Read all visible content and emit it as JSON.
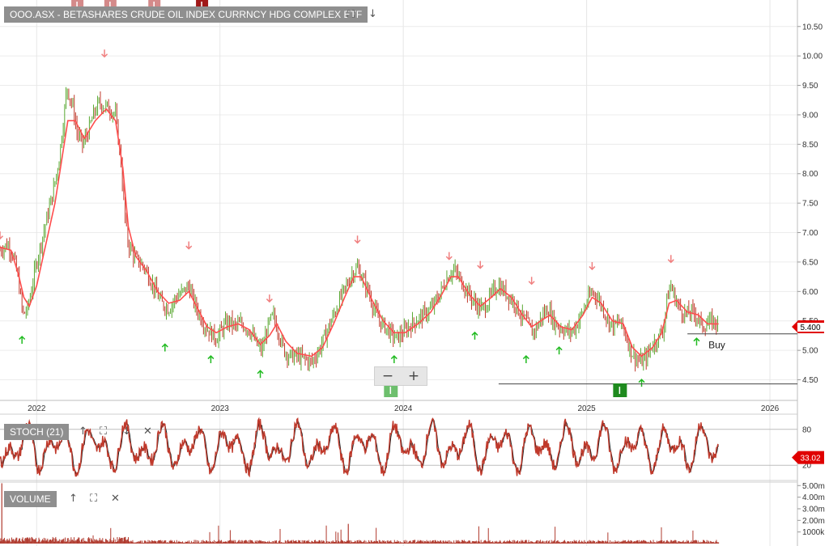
{
  "title": "OOO.ASX - BETASHARES CRUDE OIL INDEX CURRNCY HDG COMPLEX ETF",
  "colors": {
    "up": "#5aa832",
    "down": "#c0392b",
    "ma": "#ff4d4d",
    "stoch_fast": "#c0392b",
    "stoch_slow": "#222222",
    "sell_arrow": "#f08080",
    "buy_arrow": "#22bb22",
    "volume": "#b03a2e",
    "price_tag": "#e00000",
    "event_marker": "#c04040",
    "div_marker": "#6dbf6d",
    "div_marker_dark": "#1e8a1e"
  },
  "icons": {
    "expand": "expand-icon",
    "down": "arrow-down-icon",
    "up": "arrow-up-icon",
    "close": "close-icon"
  },
  "annotations": {
    "buy_label": "Buy"
  },
  "price_tag": "5.400",
  "stoch_tag": "33.02",
  "zoom": {
    "minus": "−",
    "plus": "+"
  },
  "chart_data": [
    {
      "type": "line",
      "name": "price",
      "x_ticks": [
        "2022",
        "2023",
        "2024",
        "2025",
        "2026"
      ],
      "y_ticks": [
        4.5,
        5.0,
        5.5,
        6.0,
        6.5,
        7.0,
        7.5,
        8.0,
        8.5,
        9.0,
        9.5,
        10.0,
        10.5
      ],
      "y_tick_labels": [
        "4.50",
        "5.00",
        "5.50",
        "6.00",
        "6.50",
        "7.00",
        "7.50",
        "8.00",
        "8.50",
        "9.00",
        "9.50",
        "10.00",
        "10.50"
      ],
      "ylim": [
        4.15,
        10.95
      ],
      "xlim": [
        2021.8,
        2026.15
      ],
      "grid": true,
      "series": [
        {
          "values": [
            [
              2021.8,
              6.7
            ],
            [
              2021.84,
              6.8
            ],
            [
              2021.87,
              6.65
            ],
            [
              2021.9,
              6.2
            ],
            [
              2021.925,
              5.6
            ],
            [
              2021.95,
              5.7
            ],
            [
              2021.97,
              6.0
            ],
            [
              2022.0,
              6.5
            ],
            [
              2022.03,
              6.9
            ],
            [
              2022.06,
              7.3
            ],
            [
              2022.09,
              7.7
            ],
            [
              2022.12,
              8.2
            ],
            [
              2022.15,
              9.0
            ],
            [
              2022.165,
              9.5
            ],
            [
              2022.18,
              9.3
            ],
            [
              2022.2,
              9.1
            ],
            [
              2022.22,
              8.7
            ],
            [
              2022.25,
              8.5
            ],
            [
              2022.28,
              8.7
            ],
            [
              2022.31,
              9.0
            ],
            [
              2022.34,
              9.2
            ],
            [
              2022.37,
              9.15
            ],
            [
              2022.4,
              9.1
            ],
            [
              2022.43,
              9.0
            ],
            [
              2022.46,
              8.2
            ],
            [
              2022.48,
              7.3
            ],
            [
              2022.5,
              6.8
            ],
            [
              2022.53,
              6.6
            ],
            [
              2022.56,
              6.5
            ],
            [
              2022.59,
              6.4
            ],
            [
              2022.62,
              6.2
            ],
            [
              2022.65,
              6.0
            ],
            [
              2022.68,
              5.8
            ],
            [
              2022.72,
              5.7
            ],
            [
              2022.76,
              5.9
            ],
            [
              2022.8,
              6.0
            ],
            [
              2022.83,
              6.1
            ],
            [
              2022.86,
              5.8
            ],
            [
              2022.89,
              5.6
            ],
            [
              2022.92,
              5.4
            ],
            [
              2022.95,
              5.3
            ],
            [
              2022.98,
              5.2
            ],
            [
              2023.02,
              5.4
            ],
            [
              2023.05,
              5.5
            ],
            [
              2023.08,
              5.4
            ],
            [
              2023.11,
              5.45
            ],
            [
              2023.14,
              5.4
            ],
            [
              2023.17,
              5.3
            ],
            [
              2023.2,
              5.1
            ],
            [
              2023.23,
              5.0
            ],
            [
              2023.26,
              5.4
            ],
            [
              2023.29,
              5.6
            ],
            [
              2023.32,
              5.3
            ],
            [
              2023.35,
              5.0
            ],
            [
              2023.38,
              4.9
            ],
            [
              2023.42,
              4.9
            ],
            [
              2023.46,
              4.85
            ],
            [
              2023.5,
              4.8
            ],
            [
              2023.54,
              5.0
            ],
            [
              2023.58,
              5.3
            ],
            [
              2023.62,
              5.6
            ],
            [
              2023.66,
              5.9
            ],
            [
              2023.69,
              6.1
            ],
            [
              2023.72,
              6.3
            ],
            [
              2023.75,
              6.4
            ],
            [
              2023.78,
              6.2
            ],
            [
              2023.81,
              6.0
            ],
            [
              2023.84,
              5.7
            ],
            [
              2023.87,
              5.5
            ],
            [
              2023.9,
              5.4
            ],
            [
              2023.93,
              5.3
            ],
            [
              2023.96,
              5.2
            ],
            [
              2024.0,
              5.3
            ],
            [
              2024.03,
              5.4
            ],
            [
              2024.07,
              5.5
            ],
            [
              2024.11,
              5.6
            ],
            [
              2024.15,
              5.7
            ],
            [
              2024.19,
              5.9
            ],
            [
              2024.22,
              6.1
            ],
            [
              2024.25,
              6.3
            ],
            [
              2024.28,
              6.35
            ],
            [
              2024.31,
              6.2
            ],
            [
              2024.35,
              6.0
            ],
            [
              2024.39,
              5.8
            ],
            [
              2024.43,
              5.7
            ],
            [
              2024.46,
              5.8
            ],
            [
              2024.49,
              6.0
            ],
            [
              2024.52,
              6.1
            ],
            [
              2024.55,
              6.0
            ],
            [
              2024.58,
              5.9
            ],
            [
              2024.61,
              5.8
            ],
            [
              2024.64,
              5.6
            ],
            [
              2024.67,
              5.5
            ],
            [
              2024.7,
              5.3
            ],
            [
              2024.73,
              5.4
            ],
            [
              2024.76,
              5.6
            ],
            [
              2024.79,
              5.7
            ],
            [
              2024.82,
              5.5
            ],
            [
              2024.85,
              5.4
            ],
            [
              2024.88,
              5.35
            ],
            [
              2024.91,
              5.3
            ],
            [
              2024.94,
              5.4
            ],
            [
              2024.97,
              5.6
            ],
            [
              2025.0,
              5.8
            ],
            [
              2025.03,
              6.0
            ],
            [
              2025.06,
              5.9
            ],
            [
              2025.09,
              5.7
            ],
            [
              2025.12,
              5.5
            ],
            [
              2025.15,
              5.4
            ],
            [
              2025.18,
              5.5
            ],
            [
              2025.21,
              5.3
            ],
            [
              2025.24,
              5.0
            ],
            [
              2025.27,
              4.85
            ],
            [
              2025.3,
              4.8
            ],
            [
              2025.33,
              4.9
            ],
            [
              2025.36,
              5.1
            ],
            [
              2025.39,
              5.2
            ],
            [
              2025.42,
              5.4
            ],
            [
              2025.44,
              5.9
            ],
            [
              2025.46,
              6.1
            ],
            [
              2025.48,
              5.9
            ],
            [
              2025.51,
              5.7
            ],
            [
              2025.54,
              5.6
            ],
            [
              2025.57,
              5.65
            ],
            [
              2025.6,
              5.6
            ],
            [
              2025.63,
              5.4
            ],
            [
              2025.66,
              5.45
            ],
            [
              2025.69,
              5.5
            ],
            [
              2025.72,
              5.45
            ]
          ]
        }
      ],
      "ma": [
        [
          2021.8,
          6.75
        ],
        [
          2021.86,
          6.7
        ],
        [
          2021.9,
          6.3
        ],
        [
          2021.93,
          5.9
        ],
        [
          2021.96,
          5.75
        ],
        [
          2022.0,
          6.1
        ],
        [
          2022.05,
          6.8
        ],
        [
          2022.1,
          7.5
        ],
        [
          2022.14,
          8.3
        ],
        [
          2022.17,
          8.9
        ],
        [
          2022.21,
          8.9
        ],
        [
          2022.26,
          8.6
        ],
        [
          2022.32,
          8.9
        ],
        [
          2022.38,
          9.1
        ],
        [
          2022.43,
          8.9
        ],
        [
          2022.47,
          8.1
        ],
        [
          2022.5,
          7.1
        ],
        [
          2022.54,
          6.6
        ],
        [
          2022.6,
          6.35
        ],
        [
          2022.66,
          6.0
        ],
        [
          2022.72,
          5.8
        ],
        [
          2022.78,
          5.85
        ],
        [
          2022.83,
          6.0
        ],
        [
          2022.88,
          5.7
        ],
        [
          2022.93,
          5.4
        ],
        [
          2022.98,
          5.3
        ],
        [
          2023.04,
          5.4
        ],
        [
          2023.1,
          5.45
        ],
        [
          2023.16,
          5.35
        ],
        [
          2023.22,
          5.1
        ],
        [
          2023.27,
          5.25
        ],
        [
          2023.31,
          5.45
        ],
        [
          2023.36,
          5.15
        ],
        [
          2023.42,
          4.95
        ],
        [
          2023.5,
          4.9
        ],
        [
          2023.56,
          5.05
        ],
        [
          2023.62,
          5.45
        ],
        [
          2023.68,
          5.9
        ],
        [
          2023.73,
          6.25
        ],
        [
          2023.77,
          6.25
        ],
        [
          2023.83,
          5.85
        ],
        [
          2023.89,
          5.5
        ],
        [
          2023.95,
          5.3
        ],
        [
          2024.01,
          5.3
        ],
        [
          2024.08,
          5.45
        ],
        [
          2024.15,
          5.65
        ],
        [
          2024.21,
          5.95
        ],
        [
          2024.26,
          6.25
        ],
        [
          2024.3,
          6.25
        ],
        [
          2024.36,
          5.95
        ],
        [
          2024.42,
          5.75
        ],
        [
          2024.48,
          5.9
        ],
        [
          2024.53,
          6.05
        ],
        [
          2024.59,
          5.9
        ],
        [
          2024.65,
          5.6
        ],
        [
          2024.7,
          5.4
        ],
        [
          2024.75,
          5.5
        ],
        [
          2024.8,
          5.6
        ],
        [
          2024.86,
          5.4
        ],
        [
          2024.92,
          5.35
        ],
        [
          2024.98,
          5.6
        ],
        [
          2025.03,
          5.9
        ],
        [
          2025.08,
          5.8
        ],
        [
          2025.14,
          5.5
        ],
        [
          2025.2,
          5.45
        ],
        [
          2025.25,
          5.05
        ],
        [
          2025.3,
          4.9
        ],
        [
          2025.36,
          5.05
        ],
        [
          2025.41,
          5.3
        ],
        [
          2025.45,
          5.8
        ],
        [
          2025.49,
          5.85
        ],
        [
          2025.55,
          5.65
        ],
        [
          2025.61,
          5.6
        ],
        [
          2025.66,
          5.45
        ],
        [
          2025.72,
          5.45
        ]
      ],
      "sell_signals": [
        [
          2021.8,
          6.95
        ],
        [
          2022.37,
          10.04
        ],
        [
          2022.83,
          6.78
        ],
        [
          2023.27,
          5.88
        ],
        [
          2023.75,
          6.88
        ],
        [
          2024.25,
          6.6
        ],
        [
          2024.42,
          6.45
        ],
        [
          2024.7,
          6.18
        ],
        [
          2025.03,
          6.43
        ],
        [
          2025.46,
          6.55
        ]
      ],
      "buy_signals": [
        [
          2021.92,
          5.18
        ],
        [
          2022.7,
          5.05
        ],
        [
          2022.95,
          4.85
        ],
        [
          2023.22,
          4.6
        ],
        [
          2023.95,
          4.85
        ],
        [
          2024.39,
          5.25
        ],
        [
          2024.67,
          4.85
        ],
        [
          2024.85,
          5.0
        ],
        [
          2025.3,
          4.45
        ],
        [
          2025.6,
          5.15
        ]
      ],
      "levels": [
        {
          "value": 4.43,
          "from": 2024.52,
          "to": 2026.15
        },
        {
          "value": 5.28,
          "from": 2025.55,
          "to": 2026.15
        }
      ],
      "last_price": 5.4
    },
    {
      "type": "line",
      "name": "STOCH (21)",
      "y_ticks": [
        20,
        80
      ],
      "y_tick_labels": [
        "20",
        "80"
      ],
      "ylim": [
        0,
        100
      ],
      "last_value": 33.02
    },
    {
      "type": "bar",
      "name": "VOLUME",
      "y_ticks": [
        1000000,
        2000000,
        3000000,
        4000000,
        5000000
      ],
      "y_tick_labels": [
        "1000k",
        "2.00m",
        "3.00m",
        "4.00m",
        "5.00m"
      ],
      "ylim": [
        0,
        5300000
      ]
    }
  ],
  "panels": {
    "stoch": {
      "label": "STOCH (21)"
    },
    "volume": {
      "label": "VOLUME"
    }
  }
}
